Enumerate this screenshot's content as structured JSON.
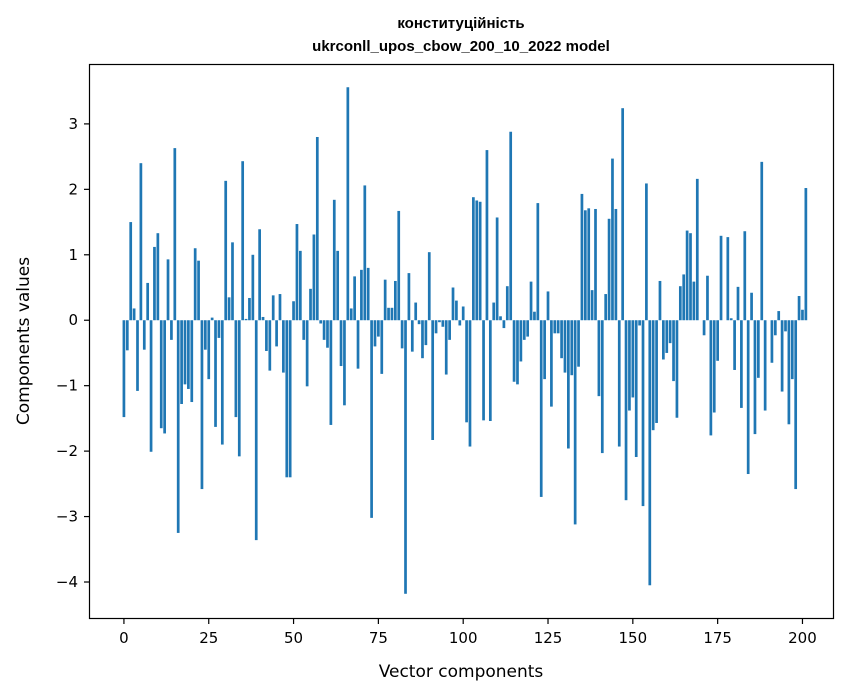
{
  "chart_data": {
    "type": "bar",
    "title": "конституційність",
    "subtitle": "ukrconll_upos_cbow_200_10_2022 model",
    "xlabel": "Vector components",
    "ylabel": "Components values",
    "xlim": [
      -10,
      209
    ],
    "ylim": [
      -4.55,
      3.9
    ],
    "xticks": [
      0,
      25,
      50,
      75,
      100,
      125,
      150,
      175,
      200
    ],
    "yticks": [
      -4,
      -3,
      -2,
      -1,
      0,
      1,
      2,
      3
    ],
    "bar_color": "#1f77b4",
    "grid": false,
    "values": [
      -1.48,
      -0.46,
      1.5,
      0.18,
      -1.08,
      2.4,
      -0.45,
      0.57,
      -2.01,
      1.12,
      1.33,
      -1.65,
      -1.73,
      0.93,
      -0.3,
      2.63,
      -3.25,
      -1.28,
      -0.98,
      -1.05,
      -1.25,
      1.1,
      0.91,
      -2.58,
      -0.45,
      -0.9,
      0.04,
      -1.63,
      -0.27,
      -1.9,
      2.13,
      0.35,
      1.19,
      -1.48,
      -2.08,
      2.43,
      0.02,
      0.34,
      1.0,
      -3.36,
      1.39,
      0.05,
      -0.47,
      -0.77,
      0.38,
      -0.4,
      0.4,
      -0.8,
      -2.4,
      -2.4,
      0.29,
      1.47,
      1.06,
      -0.3,
      -1.01,
      0.48,
      1.31,
      2.8,
      -0.05,
      -0.3,
      -0.42,
      -1.6,
      1.84,
      1.06,
      -0.7,
      -1.3,
      3.56,
      0.18,
      0.67,
      -0.74,
      0.77,
      2.06,
      0.8,
      -3.02,
      -0.4,
      -0.25,
      -0.82,
      0.62,
      0.19,
      0.19,
      0.6,
      1.67,
      -0.43,
      -4.18,
      0.72,
      -0.48,
      0.27,
      -0.06,
      -0.58,
      -0.38,
      1.04,
      -1.83,
      -0.2,
      -0.03,
      -0.1,
      -0.83,
      -0.3,
      0.5,
      0.3,
      -0.08,
      0.21,
      -1.56,
      -1.93,
      1.88,
      1.83,
      1.81,
      -1.53,
      2.6,
      -1.54,
      0.27,
      1.57,
      0.06,
      -0.12,
      0.52,
      2.88,
      -0.94,
      -0.98,
      -0.63,
      -0.3,
      -0.25,
      0.59,
      0.13,
      1.79,
      -2.7,
      -0.9,
      0.44,
      -1.32,
      -0.2,
      -0.2,
      -0.58,
      -0.8,
      -1.96,
      -0.84,
      -3.12,
      -0.71,
      1.93,
      1.68,
      1.71,
      0.46,
      1.7,
      -1.16,
      -2.03,
      0.4,
      1.55,
      2.47,
      1.7,
      -1.93,
      3.24,
      -2.75,
      -1.38,
      -1.18,
      -2.09,
      -0.08,
      -2.84,
      2.09,
      -4.05,
      -1.68,
      -1.57,
      0.6,
      -0.6,
      -0.5,
      -0.35,
      -0.93,
      -1.49,
      0.52,
      0.7,
      1.37,
      1.33,
      0.59,
      2.16,
      0.0,
      -0.23,
      0.68,
      -1.76,
      -1.41,
      -0.62,
      1.29,
      0.0,
      1.27,
      0.03,
      -0.76,
      0.51,
      -1.34,
      1.36,
      -2.35,
      0.42,
      -1.74,
      -0.88,
      2.42,
      -1.38,
      0.0,
      -0.65,
      -0.23,
      0.14,
      -1.09,
      -0.17,
      -1.59,
      -0.9,
      -2.58,
      0.37,
      0.16,
      2.02
    ]
  }
}
